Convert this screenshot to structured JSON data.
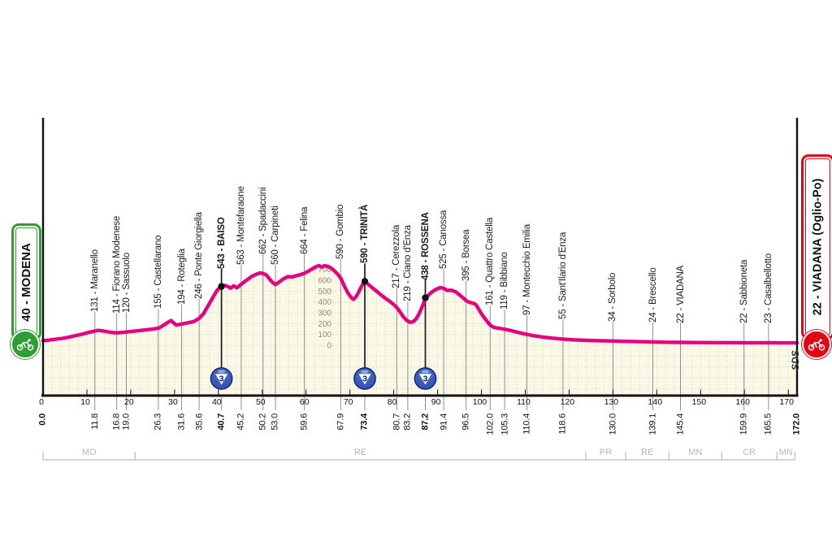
{
  "start_box": {
    "label": "40 - MODENA"
  },
  "finish_box": {
    "label": "22 - VIADANA (Oglio-Po)"
  },
  "sds": "SDS",
  "colors": {
    "pink": "#e6007e",
    "area_fill": "#faf9e7",
    "grid_dot": "#d3d0ab",
    "waypoint_line": "#8f8f8f",
    "gpm_line": "#1a1a1a",
    "axis": "#111111",
    "scale_text": "#8f8d7a",
    "province": "#bdbdbd",
    "start_green": "#2f9e33",
    "finish_red": "#e30613",
    "gpm_fill": "#2b4bab",
    "gpm_dark": "#0d1e62",
    "gpm_light": "#8fb0e8"
  },
  "chart_data": {
    "type": "area",
    "x_unit": "km",
    "y_unit": "m",
    "x_range": [
      0,
      172
    ],
    "y_range": [
      0,
      750
    ],
    "km_ticks": [
      0,
      10,
      20,
      30,
      40,
      50,
      60,
      70,
      80,
      90,
      100,
      110,
      120,
      130,
      140,
      150,
      160,
      170
    ],
    "elevation_ticks": [
      0,
      100,
      200,
      300,
      400,
      500,
      600,
      700
    ],
    "endpoints": {
      "start": {
        "km": 0.0,
        "km_text": "0.0",
        "name": "MODENA",
        "elevation": 40,
        "bold": true
      },
      "finish": {
        "km": 172.0,
        "km_text": "172.0",
        "name": "VIADANA (Oglio-Po)",
        "elevation": 22,
        "bold": true
      }
    },
    "waypoints": [
      {
        "km": 11.8,
        "km_text": "11.8",
        "elevation": 131,
        "name": "Maranello",
        "bold": false,
        "gpm": null
      },
      {
        "km": 16.8,
        "km_text": "16.8",
        "elevation": 114,
        "name": "Fiorano Modenese",
        "bold": false,
        "gpm": null
      },
      {
        "km": 19.0,
        "km_text": "19.0",
        "elevation": 120,
        "name": "Sassuolo",
        "bold": false,
        "gpm": null
      },
      {
        "km": 26.3,
        "km_text": "26.3",
        "elevation": 155,
        "name": "Castellarano",
        "bold": false,
        "gpm": null
      },
      {
        "km": 31.6,
        "km_text": "31.6",
        "elevation": 194,
        "name": "Roteglia",
        "bold": false,
        "gpm": null
      },
      {
        "km": 35.6,
        "km_text": "35.6",
        "elevation": 246,
        "name": "Ponte Giorgiella",
        "bold": false,
        "gpm": null
      },
      {
        "km": 40.7,
        "km_text": "40.7",
        "elevation": 543,
        "name": "BAISO",
        "bold": true,
        "gpm": "3"
      },
      {
        "km": 45.2,
        "km_text": "45.2",
        "elevation": 563,
        "name": "Montefaraone",
        "bold": false,
        "gpm": null
      },
      {
        "km": 50.2,
        "km_text": "50.2",
        "elevation": 662,
        "name": "Spadaccini",
        "bold": false,
        "gpm": null
      },
      {
        "km": 53.0,
        "km_text": "53.0",
        "elevation": 560,
        "name": "Carpineti",
        "bold": false,
        "gpm": null
      },
      {
        "km": 59.6,
        "km_text": "59.6",
        "elevation": 664,
        "name": "Felina",
        "bold": false,
        "gpm": null
      },
      {
        "km": 67.9,
        "km_text": "67.9",
        "elevation": 590,
        "name": "Gombio",
        "bold": false,
        "gpm": null
      },
      {
        "km": 73.4,
        "km_text": "73.4",
        "elevation": 590,
        "name": "TRINITÀ",
        "bold": true,
        "gpm": "3"
      },
      {
        "km": 80.7,
        "km_text": "80.7",
        "elevation": 217,
        "name": "Cerezzola",
        "bold": false,
        "gpm": null
      },
      {
        "km": 83.2,
        "km_text": "83.2",
        "elevation": 219,
        "name": "Ciano d'Enza",
        "bold": false,
        "gpm": null
      },
      {
        "km": 87.2,
        "km_text": "87.2",
        "elevation": 438,
        "name": "ROSSENA",
        "bold": true,
        "gpm": "3"
      },
      {
        "km": 91.4,
        "km_text": "91.4",
        "elevation": 525,
        "name": "Canossa",
        "bold": false,
        "gpm": null
      },
      {
        "km": 96.5,
        "km_text": "96.5",
        "elevation": 395,
        "name": "Borsea",
        "bold": false,
        "gpm": null
      },
      {
        "km": 102.0,
        "km_text": "102.0",
        "elevation": 161,
        "name": "Quattro Castella",
        "bold": false,
        "gpm": null
      },
      {
        "km": 105.3,
        "km_text": "105.3",
        "elevation": 119,
        "name": "Bibbiano",
        "bold": false,
        "gpm": null
      },
      {
        "km": 110.4,
        "km_text": "110.4",
        "elevation": 97,
        "name": "Montecchio Emilia",
        "bold": false,
        "gpm": null
      },
      {
        "km": 118.6,
        "km_text": "118.6",
        "elevation": 55,
        "name": "Sant'Ilario d'Enza",
        "bold": false,
        "gpm": null
      },
      {
        "km": 130.0,
        "km_text": "130.0",
        "elevation": 34,
        "name": "Sorbolo",
        "bold": false,
        "gpm": null
      },
      {
        "km": 139.1,
        "km_text": "139.1",
        "elevation": 24,
        "name": "Brescello",
        "bold": false,
        "gpm": null
      },
      {
        "km": 145.4,
        "km_text": "145.4",
        "elevation": 22,
        "name": "VIADANA",
        "bold": false,
        "gpm": null
      },
      {
        "km": 159.9,
        "km_text": "159.9",
        "elevation": 22,
        "name": "Sabbioneta",
        "bold": false,
        "gpm": null
      },
      {
        "km": 165.5,
        "km_text": "165.5",
        "elevation": 23,
        "name": "Casalbellotto",
        "bold": false,
        "gpm": null
      }
    ],
    "provinces": [
      {
        "label": "MO",
        "start_km": 0,
        "end_km": 21
      },
      {
        "label": "RE",
        "start_km": 21,
        "end_km": 123.8
      },
      {
        "label": "PR",
        "start_km": 123.8,
        "end_km": 132.9
      },
      {
        "label": "RE",
        "start_km": 132.9,
        "end_km": 142.8
      },
      {
        "label": "MN",
        "start_km": 142.8,
        "end_km": 154.8
      },
      {
        "label": "CR",
        "start_km": 154.8,
        "end_km": 167.4
      },
      {
        "label": "MN",
        "start_km": 167.4,
        "end_km": 171.5
      }
    ],
    "profile": [
      [
        0,
        42
      ],
      [
        1.5,
        48
      ],
      [
        3,
        56
      ],
      [
        4.5,
        64
      ],
      [
        6,
        76
      ],
      [
        7.5,
        90
      ],
      [
        9,
        103
      ],
      [
        10.3,
        117
      ],
      [
        11.8,
        131
      ],
      [
        12.6,
        137
      ],
      [
        13.6,
        133
      ],
      [
        14.8,
        124
      ],
      [
        16,
        117
      ],
      [
        16.8,
        114
      ],
      [
        17.8,
        118
      ],
      [
        19,
        122
      ],
      [
        20.5,
        129
      ],
      [
        22,
        136
      ],
      [
        23.5,
        142
      ],
      [
        25,
        149
      ],
      [
        26.3,
        157
      ],
      [
        27.4,
        182
      ],
      [
        28.3,
        207
      ],
      [
        29.2,
        228
      ],
      [
        29.8,
        206
      ],
      [
        30.4,
        186
      ],
      [
        31.6,
        196
      ],
      [
        33,
        207
      ],
      [
        34.4,
        219
      ],
      [
        35.6,
        248
      ],
      [
        36.6,
        292
      ],
      [
        37.6,
        362
      ],
      [
        38.6,
        432
      ],
      [
        39.6,
        502
      ],
      [
        40.3,
        532
      ],
      [
        40.7,
        543
      ],
      [
        41.4,
        553
      ],
      [
        42.1,
        543
      ],
      [
        42.8,
        527
      ],
      [
        43.5,
        548
      ],
      [
        44.2,
        530
      ],
      [
        45.2,
        563
      ],
      [
        46.4,
        600
      ],
      [
        47.6,
        635
      ],
      [
        48.8,
        658
      ],
      [
        49.6,
        668
      ],
      [
        50.2,
        662
      ],
      [
        50.9,
        650
      ],
      [
        51.6,
        615
      ],
      [
        52.4,
        578
      ],
      [
        53,
        560
      ],
      [
        53.8,
        582
      ],
      [
        54.8,
        612
      ],
      [
        55.8,
        634
      ],
      [
        56.8,
        630
      ],
      [
        57.8,
        642
      ],
      [
        58.7,
        652
      ],
      [
        59.6,
        664
      ],
      [
        60.6,
        686
      ],
      [
        61.6,
        710
      ],
      [
        62.4,
        728
      ],
      [
        63,
        735
      ],
      [
        63.5,
        722
      ],
      [
        64.2,
        734
      ],
      [
        65,
        728
      ],
      [
        65.8,
        710
      ],
      [
        66.6,
        682
      ],
      [
        67.3,
        652
      ],
      [
        68,
        612
      ],
      [
        68.8,
        540
      ],
      [
        69.6,
        480
      ],
      [
        70.3,
        440
      ],
      [
        70.8,
        424
      ],
      [
        71.4,
        448
      ],
      [
        72,
        492
      ],
      [
        72.7,
        548
      ],
      [
        73.4,
        588
      ],
      [
        74.2,
        562
      ],
      [
        75.2,
        528
      ],
      [
        76.2,
        496
      ],
      [
        77.2,
        462
      ],
      [
        78.2,
        430
      ],
      [
        79.2,
        402
      ],
      [
        80.1,
        372
      ],
      [
        80.7,
        348
      ],
      [
        81.4,
        310
      ],
      [
        82.2,
        262
      ],
      [
        83,
        228
      ],
      [
        83.7,
        212
      ],
      [
        84.4,
        216
      ],
      [
        85.2,
        248
      ],
      [
        86,
        310
      ],
      [
        86.7,
        378
      ],
      [
        87.2,
        430
      ],
      [
        87.9,
        462
      ],
      [
        88.8,
        495
      ],
      [
        89.8,
        520
      ],
      [
        90.6,
        532
      ],
      [
        91.4,
        526
      ],
      [
        92.2,
        506
      ],
      [
        93.2,
        508
      ],
      [
        94.2,
        492
      ],
      [
        95.2,
        458
      ],
      [
        96,
        432
      ],
      [
        96.5,
        412
      ],
      [
        97.3,
        396
      ],
      [
        98.2,
        388
      ],
      [
        98.8,
        372
      ],
      [
        99.4,
        332
      ],
      [
        100,
        292
      ],
      [
        100.7,
        252
      ],
      [
        101.4,
        215
      ],
      [
        102,
        186
      ],
      [
        102.7,
        168
      ],
      [
        103.5,
        160
      ],
      [
        104.4,
        154
      ],
      [
        105.3,
        148
      ],
      [
        106.5,
        138
      ],
      [
        108,
        122
      ],
      [
        109.2,
        110
      ],
      [
        110.4,
        100
      ],
      [
        112,
        88
      ],
      [
        114,
        76
      ],
      [
        116,
        66
      ],
      [
        118.6,
        57
      ],
      [
        121,
        50
      ],
      [
        124,
        45
      ],
      [
        127,
        42
      ],
      [
        130,
        39
      ],
      [
        133,
        36
      ],
      [
        136,
        33
      ],
      [
        139.1,
        30
      ],
      [
        142,
        28
      ],
      [
        145.4,
        26
      ],
      [
        149,
        25
      ],
      [
        153,
        24
      ],
      [
        157,
        24
      ],
      [
        159.9,
        23
      ],
      [
        163,
        23
      ],
      [
        165.5,
        23
      ],
      [
        168,
        22
      ],
      [
        172,
        22
      ]
    ]
  }
}
